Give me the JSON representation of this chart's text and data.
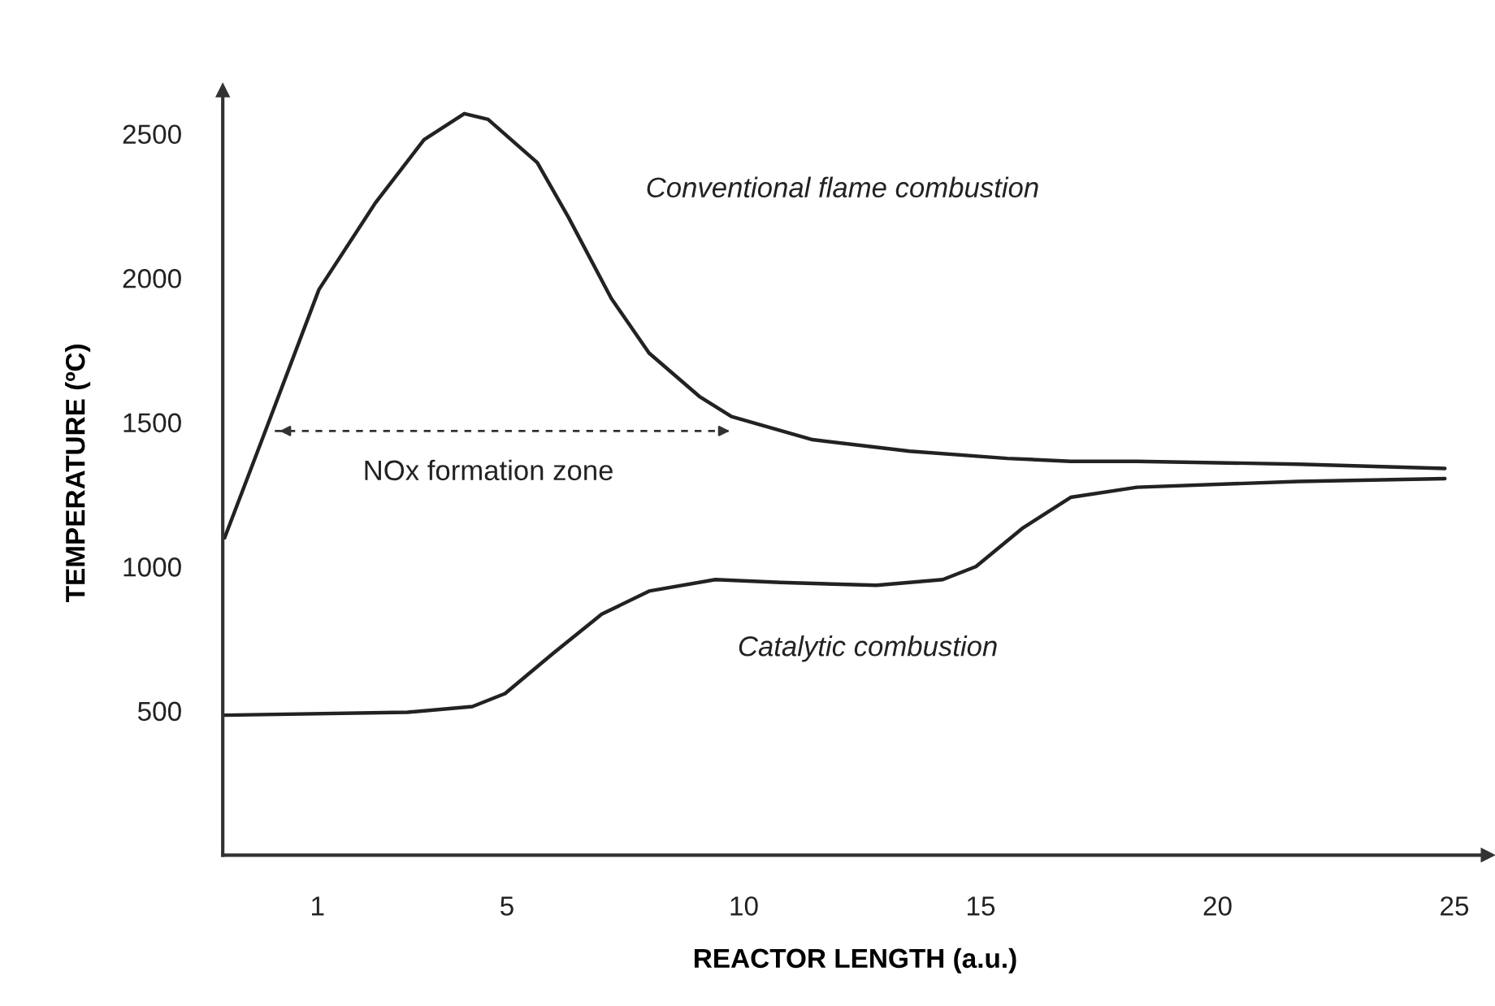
{
  "chart_data": {
    "type": "line",
    "xlabel": "REACTOR LENGTH (a.u.)",
    "ylabel": "TEMPERATURE (ºC)",
    "xlim": [
      -1,
      25.7
    ],
    "ylim": [
      0,
      2650
    ],
    "xticks": [
      1,
      5,
      10,
      15,
      20,
      25
    ],
    "yticks": [
      500,
      1000,
      1500,
      2000,
      2500
    ],
    "grid": false,
    "legend": false,
    "marker": "none",
    "series": [
      {
        "name": "Conventional flame combustion",
        "color": "#222222",
        "x": [
          -0.96,
          -0.17,
          1.03,
          2.22,
          3.25,
          4.1,
          4.6,
          5.64,
          6.3,
          7.2,
          8.0,
          9.06,
          9.74,
          11.45,
          13.5,
          15.56,
          16.9,
          18.3,
          21.7,
          24.8
        ],
        "values": [
          1100,
          1440,
          1960,
          2260,
          2480,
          2570,
          2550,
          2400,
          2210,
          1930,
          1740,
          1590,
          1520,
          1440,
          1400,
          1375,
          1365,
          1365,
          1355,
          1340
        ]
      },
      {
        "name": "Catalytic combustion",
        "color": "#222222",
        "x": [
          -0.96,
          2.9,
          4.27,
          4.96,
          5.98,
          7.0,
          8.0,
          9.4,
          10.77,
          12.8,
          14.2,
          14.9,
          15.9,
          16.9,
          18.3,
          21.7,
          24.8
        ],
        "values": [
          485,
          495,
          515,
          560,
          700,
          835,
          915,
          955,
          945,
          935,
          955,
          1000,
          1135,
          1240,
          1275,
          1295,
          1305
        ]
      },
      {
        "color": "#333333",
        "line_style": "dashed",
        "x": [
          0.1,
          9.8
        ],
        "values": [
          1470,
          1470
        ]
      }
    ],
    "annotations": [
      "NOx formation zone"
    ]
  }
}
